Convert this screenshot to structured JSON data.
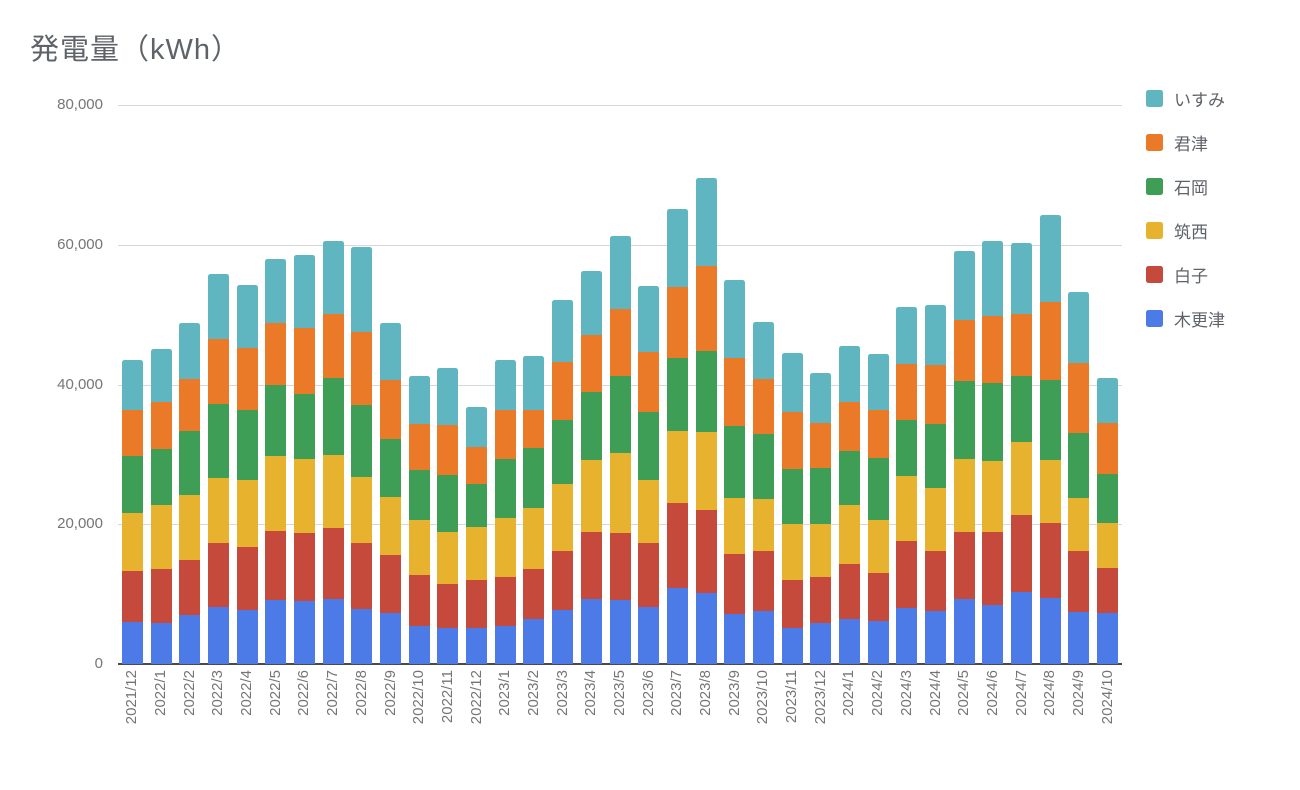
{
  "title": "発電量（kWh）",
  "y_axis": {
    "tick_labels": [
      "80,000",
      "60,000",
      "40,000",
      "20,000",
      "0"
    ],
    "tick_values": [
      80000,
      60000,
      40000,
      20000,
      0
    ]
  },
  "legend": {
    "position": "right",
    "items": [
      {
        "label": "いすみ"
      },
      {
        "label": "君津"
      },
      {
        "label": "石岡"
      },
      {
        "label": "筑西"
      },
      {
        "label": "白子"
      },
      {
        "label": "木更津"
      }
    ]
  },
  "colors": {
    "grid": "#d8d8d8",
    "axis_line": "#4a4a4a",
    "axis_text": "#757575",
    "title_text": "#5e6369"
  },
  "chart_data": {
    "type": "bar",
    "stacked": true,
    "title": "発電量（kWh）",
    "xlabel": "",
    "ylabel": "",
    "ylim": [
      0,
      80000
    ],
    "y_ticks": [
      0,
      20000,
      40000,
      60000,
      80000
    ],
    "grid": true,
    "legend_position": "right",
    "x_label_rotation": -90,
    "categories": [
      "2021/12",
      "2022/1",
      "2022/2",
      "2022/3",
      "2022/4",
      "2022/5",
      "2022/6",
      "2022/7",
      "2022/8",
      "2022/9",
      "2022/10",
      "2022/11",
      "2022/12",
      "2023/1",
      "2023/2",
      "2023/3",
      "2023/4",
      "2023/5",
      "2023/6",
      "2023/7",
      "2023/8",
      "2023/9",
      "2023/10",
      "2023/11",
      "2023/12",
      "2024/1",
      "2024/2",
      "2024/3",
      "2024/4",
      "2024/5",
      "2024/6",
      "2024/7",
      "2024/8",
      "2024/9",
      "2024/10"
    ],
    "series": [
      {
        "name": "木更津",
        "color": "#4C7BE8",
        "values": [
          5950,
          5800,
          7000,
          8200,
          7700,
          9150,
          9050,
          9300,
          7800,
          7250,
          5500,
          5100,
          5100,
          5500,
          6400,
          7700,
          9250,
          9150,
          8200,
          10900,
          10100,
          7100,
          7550,
          5200,
          5800,
          6400,
          6200,
          7950,
          7550,
          9250,
          8500,
          10350,
          9400,
          7500,
          7350
        ]
      },
      {
        "name": "白子",
        "color": "#C54A3C",
        "values": [
          7350,
          7850,
          7950,
          9150,
          9050,
          9900,
          9700,
          10100,
          9550,
          8350,
          7300,
          6400,
          6900,
          7000,
          7150,
          8450,
          9650,
          9550,
          9150,
          12100,
          12000,
          8700,
          8600,
          6800,
          6700,
          7900,
          6850,
          9600,
          8600,
          9650,
          10400,
          10950,
          10800,
          8700,
          6350
        ]
      },
      {
        "name": "筑西",
        "color": "#E7B32F",
        "values": [
          8350,
          9050,
          9200,
          9200,
          9550,
          10650,
          10550,
          10500,
          9400,
          8250,
          7750,
          7400,
          7600,
          8350,
          8800,
          9650,
          10250,
          11500,
          8950,
          10350,
          11100,
          8000,
          7500,
          8000,
          7600,
          8400,
          7600,
          9300,
          9100,
          10400,
          10100,
          10450,
          8950,
          7500,
          6450
        ]
      },
      {
        "name": "石岡",
        "color": "#3E9E55",
        "values": [
          8100,
          8100,
          9200,
          10700,
          10100,
          10200,
          9400,
          11100,
          10250,
          8400,
          7150,
          8100,
          6100,
          8550,
          8500,
          9150,
          9750,
          11000,
          9750,
          10400,
          11550,
          10200,
          9300,
          7950,
          8000,
          7800,
          8850,
          8100,
          9150,
          11200,
          11200,
          9450,
          11500,
          9300,
          7000
        ]
      },
      {
        "name": "君津",
        "color": "#EA7A28",
        "values": [
          6600,
          6650,
          7450,
          9200,
          8850,
          8900,
          9450,
          9100,
          10500,
          8400,
          6650,
          7150,
          5350,
          7000,
          5500,
          8300,
          8250,
          9650,
          8600,
          10250,
          12150,
          9800,
          7800,
          8100,
          6400,
          7000,
          6850,
          7950,
          8450,
          8700,
          9550,
          8950,
          11200,
          10050,
          7400
        ]
      },
      {
        "name": "いすみ",
        "color": "#60B6C0",
        "values": [
          7200,
          7650,
          8050,
          9350,
          9050,
          9200,
          10350,
          10450,
          12150,
          8200,
          6800,
          8150,
          5700,
          7100,
          7800,
          8900,
          9100,
          10450,
          9400,
          11150,
          12650,
          11200,
          8200,
          8400,
          7200,
          8000,
          8050,
          8200,
          8500,
          9850,
          10850,
          10100,
          12450,
          10150,
          6450
        ]
      }
    ]
  }
}
